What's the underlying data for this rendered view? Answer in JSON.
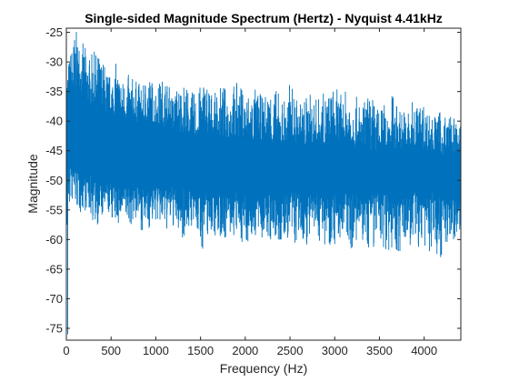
{
  "chart_data": {
    "type": "line",
    "title": "Single-sided Magnitude Spectrum (Hertz) - Nyquist 4.41kHz",
    "xlabel": "Frequency (Hz)",
    "ylabel": "Magnitude",
    "xlim": [
      0,
      4410
    ],
    "ylim": [
      -77,
      -24.3
    ],
    "x_ticks": [
      0,
      500,
      1000,
      1500,
      2000,
      2500,
      3000,
      3500,
      4000
    ],
    "y_ticks": [
      -25,
      -30,
      -35,
      -40,
      -45,
      -50,
      -55,
      -60,
      -65,
      -70,
      -75
    ],
    "grid": false,
    "line_color": "#0072BD",
    "series": [
      {
        "x": [
          0,
          20,
          60,
          100,
          150,
          200,
          260,
          320,
          400,
          480,
          560,
          620,
          700,
          780,
          860,
          900,
          1000,
          1100,
          1180,
          1300,
          1400,
          1480,
          1520,
          1600,
          1640,
          1700,
          1800,
          1900,
          2000,
          2100,
          2200,
          2300,
          2400,
          2480,
          2500,
          2600,
          2700,
          2800,
          2900,
          3000,
          3100,
          3150,
          3200,
          3300,
          3400,
          3500,
          3600,
          3640,
          3700,
          3800,
          3900,
          4000,
          4100,
          4200,
          4300,
          4410
        ],
        "upper": [
          -34,
          -30,
          -27,
          -24.5,
          -26,
          -27,
          -29,
          -28,
          -29,
          -32,
          -30,
          -33,
          -32,
          -33,
          -34,
          -31,
          -34,
          -32,
          -35,
          -33,
          -35,
          -35,
          -32,
          -33,
          -36,
          -34,
          -34,
          -33,
          -35,
          -34,
          -36,
          -33,
          -36,
          -35,
          -33,
          -37,
          -35,
          -36,
          -35,
          -34,
          -36,
          -33,
          -35,
          -37,
          -35,
          -38,
          -36,
          -35,
          -37,
          -38,
          -36,
          -37,
          -39,
          -38,
          -39,
          -40
        ],
        "mid_high": [
          -38,
          -36,
          -35,
          -34,
          -35,
          -36,
          -37,
          -37,
          -38,
          -39,
          -39,
          -39,
          -40,
          -40,
          -41,
          -40,
          -41,
          -41,
          -42,
          -42,
          -43,
          -43,
          -42,
          -43,
          -43,
          -43,
          -43,
          -43,
          -43,
          -44,
          -44,
          -44,
          -44,
          -44,
          -44,
          -44,
          -44,
          -44,
          -44,
          -44,
          -44,
          -44,
          -44,
          -45,
          -45,
          -45,
          -45,
          -45,
          -45,
          -45,
          -45,
          -45,
          -45,
          -46,
          -46,
          -46
        ],
        "mid_low": [
          -46,
          -47,
          -48,
          -48,
          -49,
          -49,
          -49,
          -50,
          -50,
          -50,
          -51,
          -51,
          -51,
          -51,
          -51,
          -51,
          -51,
          -51,
          -51,
          -51,
          -52,
          -52,
          -51,
          -52,
          -52,
          -52,
          -52,
          -52,
          -52,
          -52,
          -52,
          -52,
          -52,
          -52,
          -52,
          -52,
          -52,
          -52,
          -52,
          -52,
          -52,
          -52,
          -52,
          -52,
          -52,
          -52,
          -52,
          -53,
          -53,
          -53,
          -52,
          -52,
          -52,
          -52,
          -53,
          -53
        ],
        "lower": [
          -76,
          -56,
          -54,
          -55,
          -56,
          -55,
          -56,
          -58,
          -57,
          -56,
          -58,
          -57,
          -58,
          -57,
          -59,
          -59,
          -57,
          -59,
          -58,
          -60,
          -58,
          -60,
          -62,
          -59,
          -59,
          -60,
          -60,
          -60,
          -61,
          -60,
          -60,
          -61,
          -62,
          -60,
          -62,
          -61,
          -61,
          -60,
          -61,
          -61,
          -60,
          -61,
          -62,
          -61,
          -62,
          -61,
          -62,
          -62,
          -63,
          -61,
          -62,
          -62,
          -63,
          -63,
          -61,
          -58
        ]
      }
    ]
  }
}
